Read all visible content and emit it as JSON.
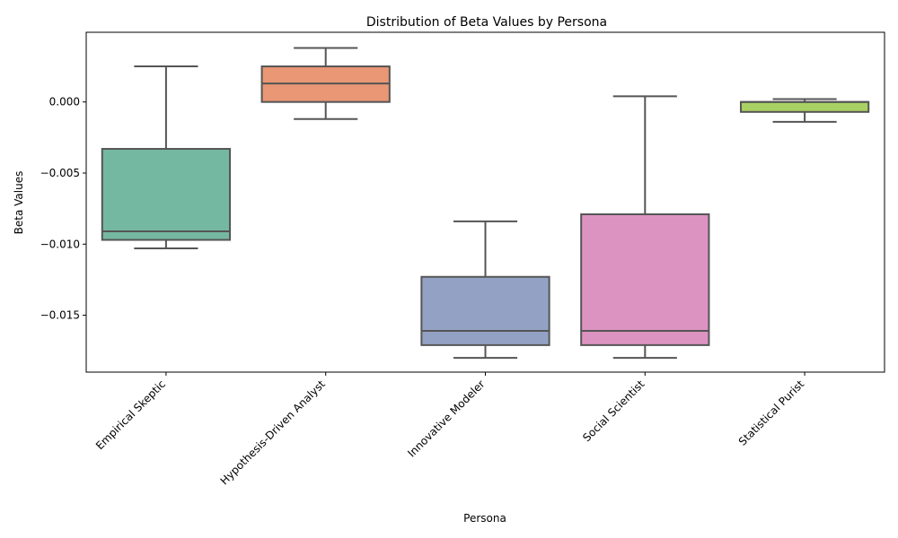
{
  "chart_data": {
    "type": "box",
    "title": "Distribution of Beta Values by Persona",
    "xlabel": "Persona",
    "ylabel": "Beta Values",
    "ylim": [
      -0.019,
      0.0049
    ],
    "yticks": [
      0.0,
      -0.005,
      -0.01,
      -0.015
    ],
    "ytick_labels": [
      "0.000",
      "−0.005",
      "−0.010",
      "−0.015"
    ],
    "grid": false,
    "legend": "none",
    "categories": [
      "Empirical Skeptic",
      "Hypothesis-Driven Analyst",
      "Innovative Modeler",
      "Social Scientist",
      "Statistical Purist"
    ],
    "boxes": [
      {
        "category": "Empirical Skeptic",
        "whisker_low": -0.0103,
        "q1": -0.0097,
        "median": -0.0091,
        "q3": -0.0033,
        "whisker_high": 0.0025,
        "color": "#75b8a1"
      },
      {
        "category": "Hypothesis-Driven Analyst",
        "whisker_low": -0.0012,
        "q1": 0.0,
        "median": 0.0013,
        "q3": 0.0025,
        "whisker_high": 0.0038,
        "color": "#e99774"
      },
      {
        "category": "Innovative Modeler",
        "whisker_low": -0.018,
        "q1": -0.0171,
        "median": -0.0161,
        "q3": -0.0123,
        "whisker_high": -0.0084,
        "color": "#93a2c4"
      },
      {
        "category": "Social Scientist",
        "whisker_low": -0.018,
        "q1": -0.0171,
        "median": -0.0161,
        "q3": -0.0079,
        "whisker_high": 0.0004,
        "color": "#dc93c1"
      },
      {
        "category": "Statistical Purist",
        "whisker_low": -0.0014,
        "q1": -0.0007,
        "median": 0.0,
        "q3": 0.0,
        "whisker_high": 0.0002,
        "color": "#a9d063"
      }
    ]
  }
}
